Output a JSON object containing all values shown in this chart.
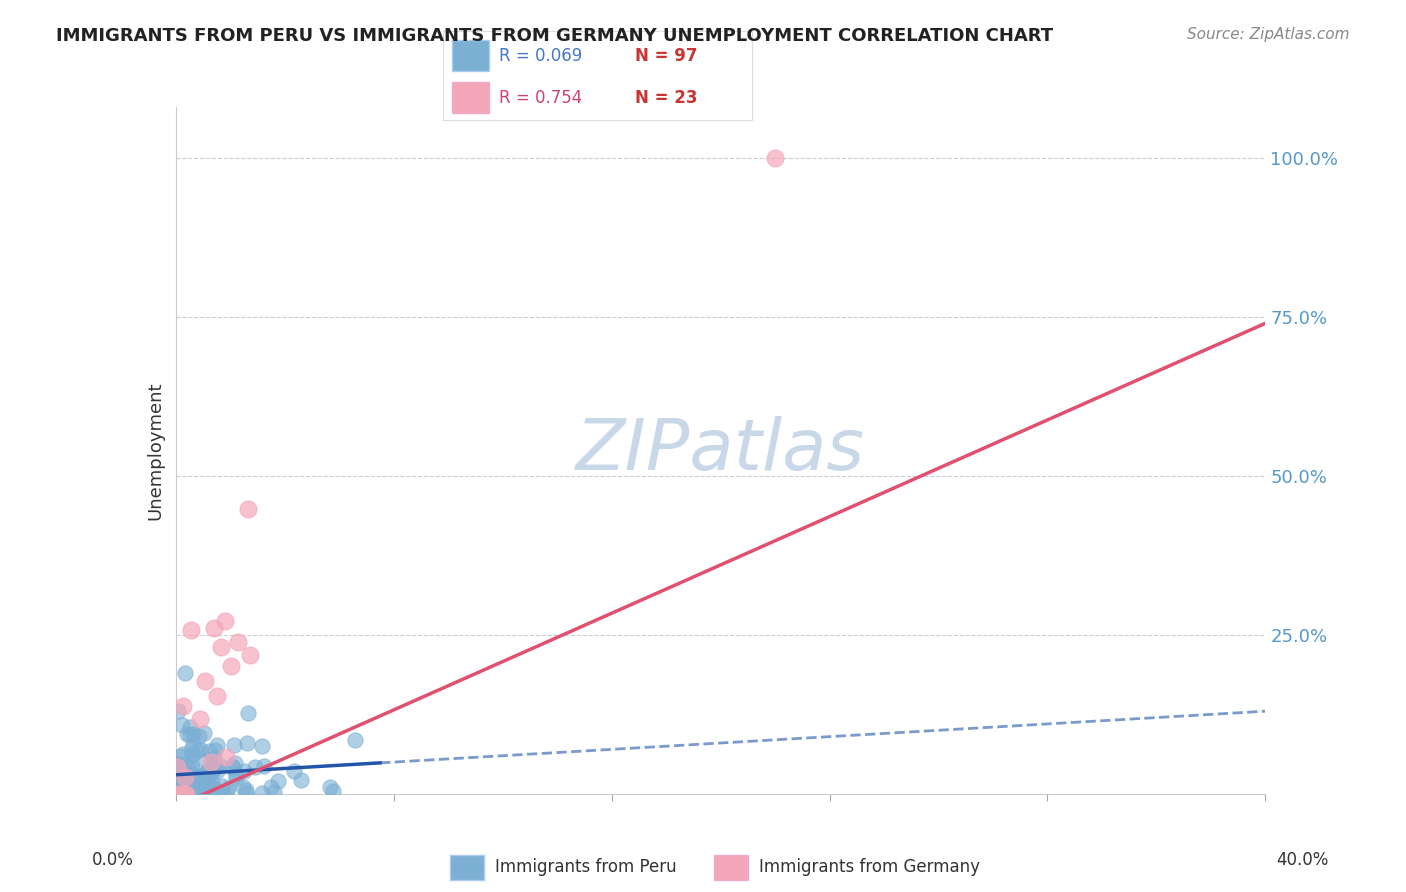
{
  "title": "IMMIGRANTS FROM PERU VS IMMIGRANTS FROM GERMANY UNEMPLOYMENT CORRELATION CHART",
  "source": "Source: ZipAtlas.com",
  "xlim": [
    0.0,
    40.0
  ],
  "ylim": [
    0.0,
    108.0
  ],
  "peru_R": 0.069,
  "peru_N": 97,
  "germany_R": 0.754,
  "germany_N": 23,
  "peru_color": "#7bafd4",
  "peru_line_color": "#2255aa",
  "germany_color": "#f4a7b9",
  "germany_line_color": "#e05070",
  "watermark_color": "#c8d8e8",
  "background_color": "#ffffff",
  "ytick_vals": [
    0,
    25,
    50,
    75,
    100
  ],
  "ytick_labels": [
    "",
    "25.0%",
    "50.0%",
    "75.0%",
    "100.0%"
  ],
  "right_tick_color": "#5599cc"
}
